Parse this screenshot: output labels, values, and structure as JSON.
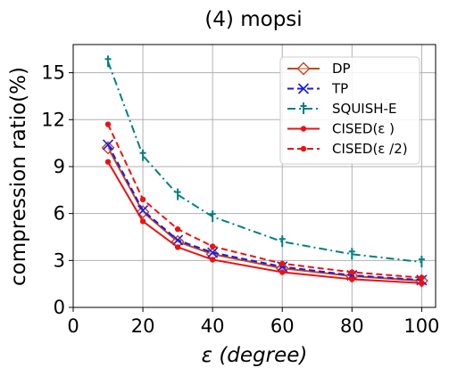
{
  "chart_data": {
    "type": "line",
    "title": "(4) mopsi",
    "xlabel": "ε (degree)",
    "ylabel": "compression ratio(%)",
    "xlim": [
      0,
      104
    ],
    "ylim": [
      0,
      16.8
    ],
    "xticks": [
      0,
      20,
      40,
      60,
      80,
      100
    ],
    "yticks": [
      0,
      3,
      6,
      9,
      12,
      15
    ],
    "grid": true,
    "legend_position": "top-right",
    "x": [
      10,
      20,
      30,
      40,
      60,
      80,
      100
    ],
    "series": [
      {
        "name": "DP",
        "values": [
          10.2,
          6.1,
          4.2,
          3.4,
          2.5,
          2.0,
          1.7
        ],
        "color": "#c0461a",
        "dash": "solid",
        "marker": "diamond"
      },
      {
        "name": "TP",
        "values": [
          10.4,
          6.2,
          4.3,
          3.5,
          2.6,
          2.05,
          1.75
        ],
        "color": "#1a1ae6",
        "dash": "dashed",
        "marker": "x"
      },
      {
        "name": "SQUISH-E",
        "values": [
          15.7,
          9.7,
          7.2,
          5.8,
          4.2,
          3.4,
          2.9
        ],
        "color": "#008080",
        "dash": "dashdot",
        "marker": "plus"
      },
      {
        "name": "CISED(ε )",
        "values": [
          9.3,
          5.5,
          3.85,
          3.05,
          2.25,
          1.8,
          1.55
        ],
        "color": "#ee1111",
        "dash": "solid",
        "marker": "dot"
      },
      {
        "name": "CISED(ε /2)",
        "values": [
          11.7,
          6.9,
          5.0,
          3.9,
          2.8,
          2.25,
          1.9
        ],
        "color": "#ee1111",
        "dash": "dashed",
        "marker": "dot"
      }
    ]
  }
}
